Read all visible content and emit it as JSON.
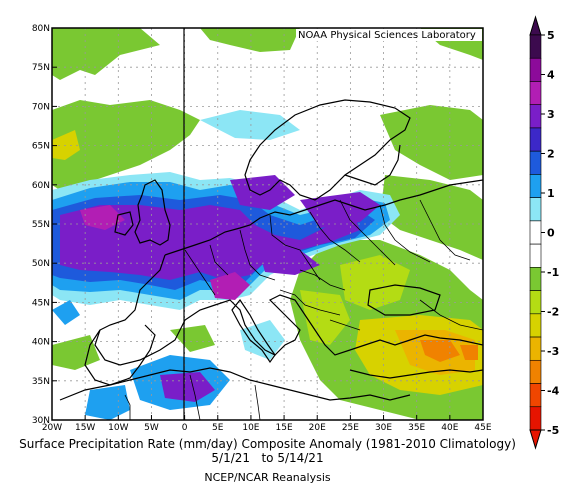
{
  "lab_label": "NOAA Physical Sciences Laboratory",
  "caption": {
    "title": "Surface Precipitation Rate (mm/day) Composite Anomaly (1981-2010 Climatology)",
    "dates": "5/1/21   to 5/14/21",
    "source": "NCEP/NCAR Reanalysis"
  },
  "map": {
    "lon_range": [
      -20,
      45
    ],
    "lat_range": [
      30,
      80
    ],
    "x_ticks": [
      "20W",
      "15W",
      "10W",
      "5W",
      "0",
      "5E",
      "10E",
      "15E",
      "20E",
      "25E",
      "30E",
      "35E",
      "40E",
      "45E"
    ],
    "y_ticks": [
      "80N",
      "75N",
      "70N",
      "65N",
      "60N",
      "55N",
      "50N",
      "45N",
      "40N",
      "35N",
      "30N"
    ],
    "grid": true,
    "prime_meridian_line": true
  },
  "colorbar": {
    "labels": [
      "5",
      "4",
      "3",
      "2",
      "1",
      "0",
      "-1",
      "-2",
      "-3",
      "-4",
      "-5"
    ],
    "colors": [
      "#3c0a4e",
      "#8c0a9a",
      "#b21eb4",
      "#7a1ec8",
      "#3c28c8",
      "#1e5adc",
      "#1ea0f0",
      "#8ce6f5",
      "#ffffff",
      "#ffffff",
      "#7ac832",
      "#b4dc14",
      "#d7d200",
      "#ebb400",
      "#f08200",
      "#f04600",
      "#e61400"
    ]
  }
}
